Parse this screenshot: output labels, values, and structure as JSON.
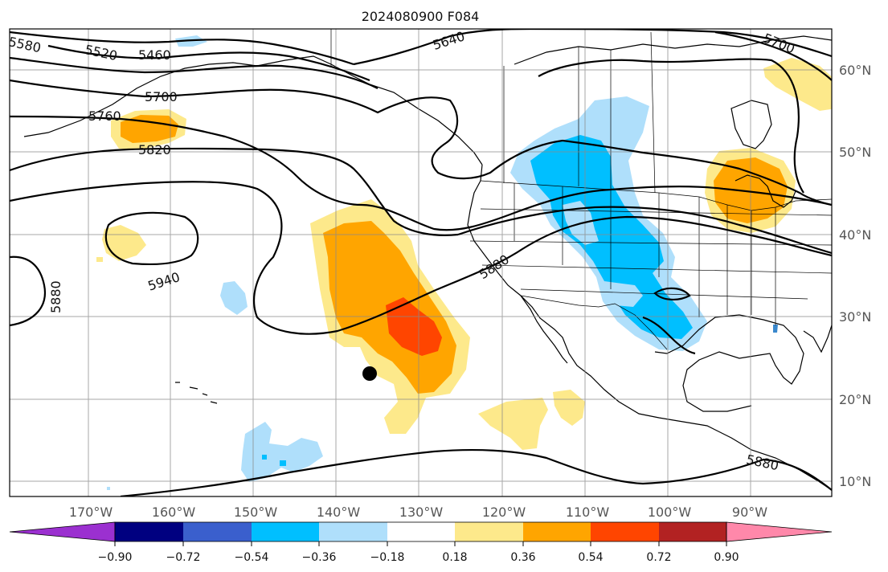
{
  "title": "2024080900 F084",
  "longitude_labels": [
    "170°W",
    "160°W",
    "150°W",
    "140°W",
    "130°W",
    "120°W",
    "110°W",
    "100°W",
    "90°W"
  ],
  "latitude_labels": [
    "60°N",
    "50°N",
    "40°N",
    "30°N",
    "20°N",
    "10°N"
  ],
  "contour_labels": [
    "5580",
    "5520",
    "5460",
    "5640",
    "5700",
    "5700",
    "5760",
    "5820",
    "5940",
    "5880",
    "5880",
    "5880"
  ],
  "colorbar": {
    "tick_labels": [
      "−0.90",
      "−0.72",
      "−0.54",
      "−0.36",
      "−0.18",
      "0.18",
      "0.36",
      "0.54",
      "0.72",
      "0.90"
    ],
    "colors": [
      "#9b30d0",
      "#000080",
      "#3a5fcd",
      "#00bfff",
      "#afdffb",
      "#ffffff",
      "#fde98b",
      "#ffa500",
      "#ff4500",
      "#b22222",
      "#ff88aa"
    ]
  },
  "marker": {
    "type": "storm-position",
    "color": "#000000"
  }
}
